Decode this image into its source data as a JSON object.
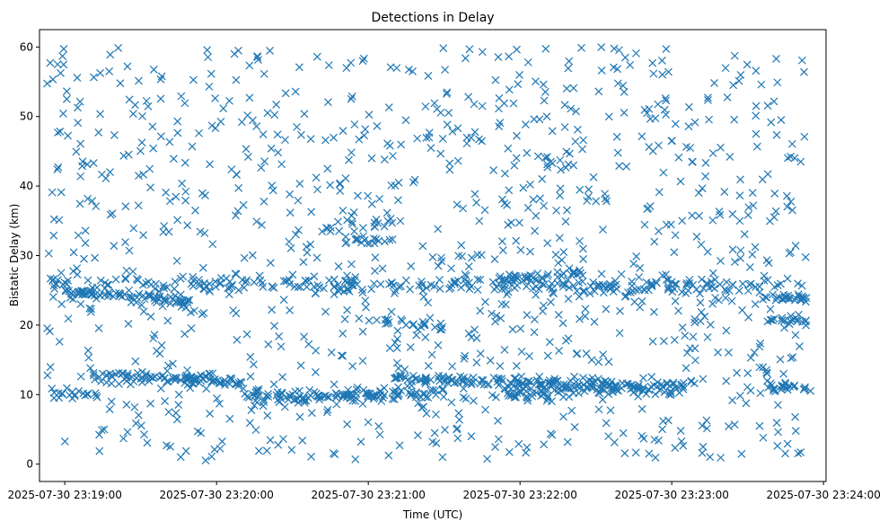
{
  "chart_data": {
    "type": "scatter",
    "title": "Detections in Delay",
    "xlabel": "Time (UTC)",
    "ylabel": "Bistatic Delay (km)",
    "marker": "x",
    "color": "#1f77b4",
    "grid": false,
    "legend": "none",
    "x_domain": [
      "2025-07-30 23:18:50",
      "2025-07-30 23:24:01"
    ],
    "ylim": [
      -2.5,
      62.5
    ],
    "x_ticks": [
      "2025-07-30 23:19:00",
      "2025-07-30 23:20:00",
      "2025-07-30 23:21:00",
      "2025-07-30 23:22:00",
      "2025-07-30 23:23:00",
      "2025-07-30 23:24:00"
    ],
    "y_ticks": [
      0,
      10,
      20,
      30,
      40,
      50,
      60
    ],
    "x_range": [
      "2025-07-30 23:18:53",
      "2025-07-30 23:23:53"
    ],
    "clusters": [
      {
        "start": "2025-07-30 23:18:53",
        "end": "2025-07-30 23:23:53",
        "delay_start": 26.0,
        "delay_end": 25.5,
        "spread": 0.6,
        "points": 260
      },
      {
        "start": "2025-07-30 23:18:58",
        "end": "2025-07-30 23:19:25",
        "delay_start": 24.8,
        "delay_end": 24.2,
        "spread": 0.3,
        "points": 40
      },
      {
        "start": "2025-07-30 23:19:25",
        "end": "2025-07-30 23:19:50",
        "delay_start": 24.0,
        "delay_end": 23.2,
        "spread": 0.4,
        "points": 40
      },
      {
        "start": "2025-07-30 23:21:50",
        "end": "2025-07-30 23:22:25",
        "delay_start": 26.5,
        "delay_end": 27.5,
        "spread": 0.4,
        "points": 40
      },
      {
        "start": "2025-07-30 23:19:10",
        "end": "2025-07-30 23:20:10",
        "delay_start": 12.5,
        "delay_end": 12.0,
        "spread": 0.4,
        "points": 100
      },
      {
        "start": "2025-07-30 23:20:10",
        "end": "2025-07-30 23:21:30",
        "delay_start": 9.5,
        "delay_end": 10.2,
        "spread": 0.5,
        "points": 120
      },
      {
        "start": "2025-07-30 23:21:10",
        "end": "2025-07-30 23:21:40",
        "delay_start": 12.5,
        "delay_end": 12.0,
        "spread": 0.3,
        "points": 30
      },
      {
        "start": "2025-07-30 23:21:30",
        "end": "2025-07-30 23:22:40",
        "delay_start": 12.0,
        "delay_end": 11.5,
        "spread": 0.4,
        "points": 90
      },
      {
        "start": "2025-07-30 23:21:50",
        "end": "2025-07-30 23:23:10",
        "delay_start": 9.8,
        "delay_end": 11.5,
        "spread": 0.5,
        "points": 110
      },
      {
        "start": "2025-07-30 23:18:55",
        "end": "2025-07-30 23:19:15",
        "delay_start": 10.0,
        "delay_end": 10.0,
        "spread": 0.4,
        "points": 20
      },
      {
        "start": "2025-07-30 23:20:40",
        "end": "2025-07-30 23:21:15",
        "delay_start": 34.0,
        "delay_end": 35.0,
        "spread": 0.4,
        "points": 20
      },
      {
        "start": "2025-07-30 23:21:00",
        "end": "2025-07-30 23:21:30",
        "delay_start": 20.5,
        "delay_end": 20.0,
        "spread": 0.3,
        "points": 20
      },
      {
        "start": "2025-07-30 23:23:30",
        "end": "2025-07-30 23:23:55",
        "delay_start": 20.8,
        "delay_end": 20.5,
        "spread": 0.3,
        "points": 20
      },
      {
        "start": "2025-07-30 23:23:35",
        "end": "2025-07-30 23:23:55",
        "delay_start": 23.8,
        "delay_end": 23.8,
        "spread": 0.3,
        "points": 25
      },
      {
        "start": "2025-07-30 23:23:35",
        "end": "2025-07-30 23:23:55",
        "delay_start": 11.0,
        "delay_end": 11.0,
        "spread": 0.3,
        "points": 20
      },
      {
        "start": "2025-07-30 23:20:50",
        "end": "2025-07-30 23:21:10",
        "delay_start": 32.0,
        "delay_end": 32.0,
        "spread": 0.3,
        "points": 15
      }
    ],
    "noise": {
      "delay_min": 0.5,
      "delay_max": 60,
      "points": 1050
    }
  }
}
